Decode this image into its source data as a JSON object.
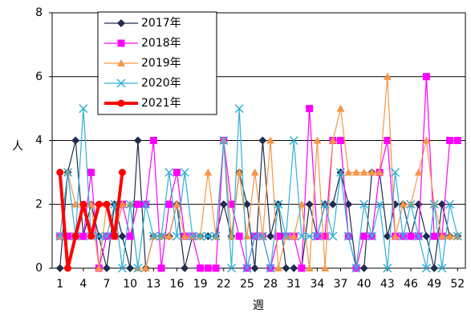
{
  "chart_data": {
    "type": "line",
    "ylabel": "人",
    "xlabel": "週",
    "x": [
      1,
      2,
      3,
      4,
      5,
      6,
      7,
      8,
      9,
      10,
      11,
      12,
      13,
      14,
      15,
      16,
      17,
      18,
      19,
      20,
      21,
      22,
      23,
      24,
      25,
      26,
      27,
      28,
      29,
      30,
      31,
      32,
      33,
      34,
      35,
      36,
      37,
      38,
      39,
      40,
      41,
      42,
      43,
      44,
      45,
      46,
      47,
      48,
      49,
      50,
      51,
      52
    ],
    "xlim": [
      0,
      53
    ],
    "xticks": [
      1,
      4,
      7,
      10,
      13,
      16,
      19,
      22,
      25,
      28,
      31,
      34,
      37,
      40,
      43,
      46,
      49,
      52
    ],
    "ylim": [
      0,
      8
    ],
    "yticks": [
      0,
      2,
      4,
      6,
      8
    ],
    "grid": true,
    "legend": "upper left",
    "series": [
      {
        "name": "2017年",
        "color": "#1f2d4d",
        "marker": "diamond",
        "values": [
          0,
          3,
          4,
          1,
          2,
          1,
          0,
          2,
          1,
          0,
          4,
          0,
          1,
          1,
          1,
          2,
          0,
          1,
          1,
          1,
          1,
          2,
          1,
          3,
          2,
          0,
          4,
          1,
          2,
          0,
          0,
          0,
          2,
          1,
          2,
          2,
          3,
          2,
          0,
          0,
          3,
          3,
          1,
          2,
          2,
          1,
          2,
          1,
          0,
          2,
          1,
          1
        ]
      },
      {
        "name": "2018年",
        "color": "#ff00ff",
        "marker": "square",
        "values": [
          1,
          1,
          1,
          1,
          3,
          0,
          1,
          1,
          2,
          1,
          2,
          2,
          4,
          0,
          2,
          3,
          1,
          1,
          0,
          0,
          0,
          4,
          2,
          1,
          0,
          1,
          1,
          0,
          1,
          1,
          1,
          0,
          5,
          1,
          1,
          4,
          4,
          1,
          0,
          1,
          1,
          3,
          4,
          1,
          1,
          1,
          1,
          6,
          1,
          1,
          4,
          4
        ]
      },
      {
        "name": "2019年",
        "color": "#f79646",
        "marker": "triangle",
        "values": [
          1,
          3,
          2,
          2,
          2,
          0,
          2,
          1,
          2,
          2,
          0,
          0,
          1,
          1,
          1,
          2,
          1,
          1,
          1,
          3,
          1,
          4,
          1,
          3,
          1,
          3,
          1,
          4,
          0,
          1,
          1,
          2,
          0,
          4,
          0,
          4,
          5,
          3,
          3,
          3,
          3,
          3,
          6,
          1,
          2,
          2,
          3,
          4,
          2,
          1,
          1,
          1
        ]
      },
      {
        "name": "2020年",
        "color": "#31b0d8",
        "marker": "x",
        "values": [
          1,
          3,
          1,
          5,
          1,
          1,
          1,
          2,
          0,
          2,
          0,
          2,
          1,
          1,
          3,
          1,
          3,
          1,
          1,
          1,
          1,
          4,
          0,
          5,
          0,
          1,
          1,
          0,
          2,
          1,
          4,
          1,
          1,
          1,
          2,
          1,
          3,
          1,
          0,
          2,
          1,
          2,
          0,
          3,
          1,
          2,
          1,
          0,
          2,
          0,
          2,
          1
        ]
      },
      {
        "name": "2021年",
        "color": "#ff0000",
        "marker": "circle",
        "values": [
          3,
          0,
          1,
          2,
          1,
          2,
          2,
          1,
          3,
          null,
          null,
          null,
          null,
          null,
          null,
          null,
          null,
          null,
          null,
          null,
          null,
          null,
          null,
          null,
          null,
          null,
          null,
          null,
          null,
          null,
          null,
          null,
          null,
          null,
          null,
          null,
          null,
          null,
          null,
          null,
          null,
          null,
          null,
          null,
          null,
          null,
          null,
          null,
          null,
          null,
          null,
          null
        ]
      }
    ]
  }
}
